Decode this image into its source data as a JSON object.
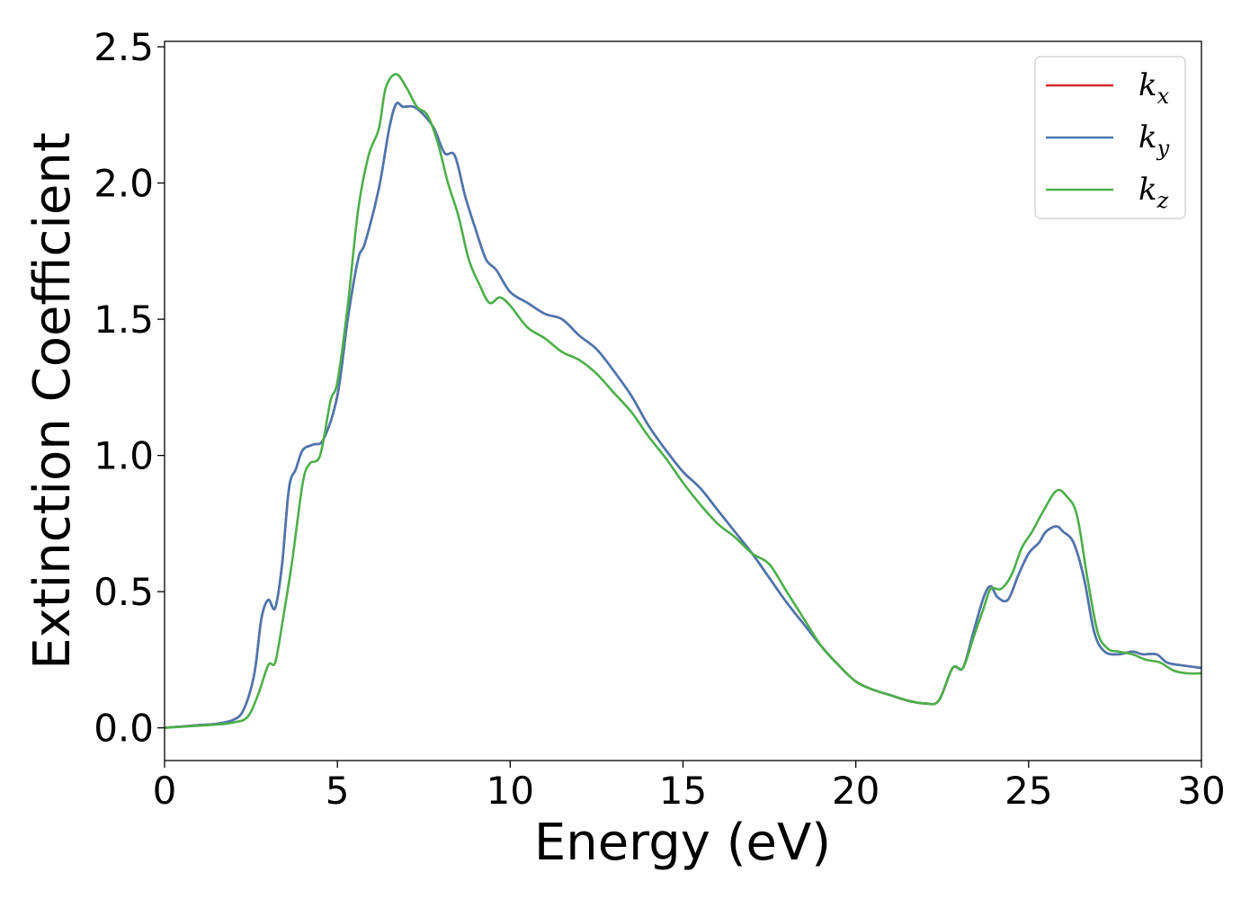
{
  "chart_data": {
    "type": "line",
    "xlabel": "Energy (eV)",
    "ylabel": "Extinction Coefficient",
    "xlim": [
      0,
      30
    ],
    "ylim": [
      -0.12,
      2.52
    ],
    "xticks": [
      0,
      5,
      10,
      15,
      20,
      25,
      30
    ],
    "xtick_labels": [
      "0",
      "5",
      "10",
      "15",
      "20",
      "25",
      "30"
    ],
    "yticks": [
      0.0,
      0.5,
      1.0,
      1.5,
      2.0,
      2.5
    ],
    "ytick_labels": [
      "0.0",
      "0.5",
      "1.0",
      "1.5",
      "2.0",
      "2.5"
    ],
    "grid": false,
    "legend_position": "top-right",
    "series": [
      {
        "name": "k",
        "sub": "x",
        "color": "#d62728",
        "points": [
          [
            0,
            0
          ],
          [
            1,
            0.01
          ],
          [
            1.5,
            0.015
          ],
          [
            2,
            0.03
          ],
          [
            2.3,
            0.07
          ],
          [
            2.6,
            0.2
          ],
          [
            2.8,
            0.4
          ],
          [
            3.0,
            0.47
          ],
          [
            3.2,
            0.44
          ],
          [
            3.4,
            0.6
          ],
          [
            3.6,
            0.88
          ],
          [
            3.8,
            0.95
          ],
          [
            4.0,
            1.02
          ],
          [
            4.3,
            1.04
          ],
          [
            4.6,
            1.06
          ],
          [
            5.0,
            1.22
          ],
          [
            5.3,
            1.5
          ],
          [
            5.6,
            1.72
          ],
          [
            5.8,
            1.78
          ],
          [
            6.2,
            1.98
          ],
          [
            6.5,
            2.2
          ],
          [
            6.7,
            2.29
          ],
          [
            6.9,
            2.28
          ],
          [
            7.2,
            2.28
          ],
          [
            7.5,
            2.25
          ],
          [
            7.8,
            2.2
          ],
          [
            8.1,
            2.11
          ],
          [
            8.4,
            2.1
          ],
          [
            8.7,
            1.95
          ],
          [
            9.0,
            1.83
          ],
          [
            9.3,
            1.72
          ],
          [
            9.6,
            1.68
          ],
          [
            10.0,
            1.6
          ],
          [
            10.5,
            1.56
          ],
          [
            11.0,
            1.52
          ],
          [
            11.5,
            1.5
          ],
          [
            12.0,
            1.44
          ],
          [
            12.5,
            1.39
          ],
          [
            13.0,
            1.31
          ],
          [
            13.5,
            1.22
          ],
          [
            14.0,
            1.11
          ],
          [
            14.5,
            1.02
          ],
          [
            15.0,
            0.94
          ],
          [
            15.5,
            0.88
          ],
          [
            16.0,
            0.8
          ],
          [
            16.5,
            0.72
          ],
          [
            17.0,
            0.64
          ],
          [
            17.5,
            0.55
          ],
          [
            18.0,
            0.46
          ],
          [
            18.5,
            0.38
          ],
          [
            19.0,
            0.3
          ],
          [
            19.5,
            0.23
          ],
          [
            20.0,
            0.17
          ],
          [
            20.5,
            0.14
          ],
          [
            21.0,
            0.12
          ],
          [
            21.5,
            0.1
          ],
          [
            22.0,
            0.09
          ],
          [
            22.4,
            0.1
          ],
          [
            22.8,
            0.22
          ],
          [
            23.1,
            0.22
          ],
          [
            23.4,
            0.35
          ],
          [
            23.7,
            0.48
          ],
          [
            23.9,
            0.52
          ],
          [
            24.1,
            0.48
          ],
          [
            24.4,
            0.47
          ],
          [
            24.7,
            0.56
          ],
          [
            25.0,
            0.64
          ],
          [
            25.3,
            0.68
          ],
          [
            25.5,
            0.72
          ],
          [
            25.8,
            0.74
          ],
          [
            26.0,
            0.72
          ],
          [
            26.3,
            0.68
          ],
          [
            26.6,
            0.55
          ],
          [
            26.9,
            0.35
          ],
          [
            27.2,
            0.28
          ],
          [
            27.6,
            0.27
          ],
          [
            28.0,
            0.28
          ],
          [
            28.3,
            0.27
          ],
          [
            28.7,
            0.27
          ],
          [
            29.0,
            0.24
          ],
          [
            29.4,
            0.23
          ],
          [
            30.0,
            0.22
          ]
        ]
      },
      {
        "name": "k",
        "sub": "y",
        "color": "#4a77b0",
        "points": [
          [
            0,
            0
          ],
          [
            1,
            0.01
          ],
          [
            1.5,
            0.015
          ],
          [
            2,
            0.03
          ],
          [
            2.3,
            0.07
          ],
          [
            2.6,
            0.2
          ],
          [
            2.8,
            0.4
          ],
          [
            3.0,
            0.47
          ],
          [
            3.2,
            0.44
          ],
          [
            3.4,
            0.6
          ],
          [
            3.6,
            0.88
          ],
          [
            3.8,
            0.95
          ],
          [
            4.0,
            1.02
          ],
          [
            4.3,
            1.04
          ],
          [
            4.6,
            1.06
          ],
          [
            5.0,
            1.22
          ],
          [
            5.3,
            1.5
          ],
          [
            5.6,
            1.72
          ],
          [
            5.8,
            1.78
          ],
          [
            6.2,
            1.98
          ],
          [
            6.5,
            2.2
          ],
          [
            6.7,
            2.29
          ],
          [
            6.9,
            2.28
          ],
          [
            7.2,
            2.28
          ],
          [
            7.5,
            2.25
          ],
          [
            7.8,
            2.2
          ],
          [
            8.1,
            2.11
          ],
          [
            8.4,
            2.1
          ],
          [
            8.7,
            1.95
          ],
          [
            9.0,
            1.83
          ],
          [
            9.3,
            1.72
          ],
          [
            9.6,
            1.68
          ],
          [
            10.0,
            1.6
          ],
          [
            10.5,
            1.56
          ],
          [
            11.0,
            1.52
          ],
          [
            11.5,
            1.5
          ],
          [
            12.0,
            1.44
          ],
          [
            12.5,
            1.39
          ],
          [
            13.0,
            1.31
          ],
          [
            13.5,
            1.22
          ],
          [
            14.0,
            1.11
          ],
          [
            14.5,
            1.02
          ],
          [
            15.0,
            0.94
          ],
          [
            15.5,
            0.88
          ],
          [
            16.0,
            0.8
          ],
          [
            16.5,
            0.72
          ],
          [
            17.0,
            0.64
          ],
          [
            17.5,
            0.55
          ],
          [
            18.0,
            0.46
          ],
          [
            18.5,
            0.38
          ],
          [
            19.0,
            0.3
          ],
          [
            19.5,
            0.23
          ],
          [
            20.0,
            0.17
          ],
          [
            20.5,
            0.14
          ],
          [
            21.0,
            0.12
          ],
          [
            21.5,
            0.1
          ],
          [
            22.0,
            0.09
          ],
          [
            22.4,
            0.1
          ],
          [
            22.8,
            0.22
          ],
          [
            23.1,
            0.22
          ],
          [
            23.4,
            0.35
          ],
          [
            23.7,
            0.48
          ],
          [
            23.9,
            0.52
          ],
          [
            24.1,
            0.48
          ],
          [
            24.4,
            0.47
          ],
          [
            24.7,
            0.56
          ],
          [
            25.0,
            0.64
          ],
          [
            25.3,
            0.68
          ],
          [
            25.5,
            0.72
          ],
          [
            25.8,
            0.74
          ],
          [
            26.0,
            0.72
          ],
          [
            26.3,
            0.68
          ],
          [
            26.6,
            0.55
          ],
          [
            26.9,
            0.35
          ],
          [
            27.2,
            0.28
          ],
          [
            27.6,
            0.27
          ],
          [
            28.0,
            0.28
          ],
          [
            28.3,
            0.27
          ],
          [
            28.7,
            0.27
          ],
          [
            29.0,
            0.24
          ],
          [
            29.4,
            0.23
          ],
          [
            30.0,
            0.22
          ]
        ]
      },
      {
        "name": "k",
        "sub": "z",
        "color": "#4daf4a",
        "points": [
          [
            0,
            0
          ],
          [
            1,
            0.008
          ],
          [
            1.5,
            0.012
          ],
          [
            2,
            0.02
          ],
          [
            2.4,
            0.04
          ],
          [
            2.7,
            0.12
          ],
          [
            3.0,
            0.23
          ],
          [
            3.2,
            0.24
          ],
          [
            3.4,
            0.38
          ],
          [
            3.7,
            0.62
          ],
          [
            4.0,
            0.9
          ],
          [
            4.2,
            0.97
          ],
          [
            4.5,
            1.0
          ],
          [
            4.8,
            1.2
          ],
          [
            5.0,
            1.27
          ],
          [
            5.3,
            1.55
          ],
          [
            5.6,
            1.9
          ],
          [
            5.9,
            2.1
          ],
          [
            6.2,
            2.2
          ],
          [
            6.4,
            2.35
          ],
          [
            6.7,
            2.4
          ],
          [
            7.0,
            2.35
          ],
          [
            7.3,
            2.28
          ],
          [
            7.6,
            2.25
          ],
          [
            7.9,
            2.15
          ],
          [
            8.2,
            2.0
          ],
          [
            8.5,
            1.88
          ],
          [
            8.8,
            1.72
          ],
          [
            9.1,
            1.63
          ],
          [
            9.4,
            1.56
          ],
          [
            9.7,
            1.58
          ],
          [
            10.0,
            1.55
          ],
          [
            10.5,
            1.47
          ],
          [
            11.0,
            1.43
          ],
          [
            11.5,
            1.38
          ],
          [
            12.0,
            1.35
          ],
          [
            12.5,
            1.3
          ],
          [
            13.0,
            1.23
          ],
          [
            13.5,
            1.16
          ],
          [
            14.0,
            1.07
          ],
          [
            14.5,
            0.99
          ],
          [
            15.0,
            0.9
          ],
          [
            15.5,
            0.82
          ],
          [
            16.0,
            0.75
          ],
          [
            16.5,
            0.7
          ],
          [
            17.0,
            0.64
          ],
          [
            17.5,
            0.6
          ],
          [
            18.0,
            0.5
          ],
          [
            18.5,
            0.4
          ],
          [
            19.0,
            0.3
          ],
          [
            19.5,
            0.23
          ],
          [
            20.0,
            0.17
          ],
          [
            20.5,
            0.14
          ],
          [
            21.0,
            0.12
          ],
          [
            21.5,
            0.1
          ],
          [
            22.0,
            0.09
          ],
          [
            22.4,
            0.1
          ],
          [
            22.8,
            0.22
          ],
          [
            23.1,
            0.22
          ],
          [
            23.4,
            0.33
          ],
          [
            23.7,
            0.44
          ],
          [
            23.9,
            0.51
          ],
          [
            24.2,
            0.51
          ],
          [
            24.5,
            0.56
          ],
          [
            24.8,
            0.66
          ],
          [
            25.1,
            0.72
          ],
          [
            25.4,
            0.79
          ],
          [
            25.8,
            0.87
          ],
          [
            26.1,
            0.85
          ],
          [
            26.4,
            0.78
          ],
          [
            26.7,
            0.55
          ],
          [
            27.0,
            0.35
          ],
          [
            27.3,
            0.29
          ],
          [
            27.6,
            0.28
          ],
          [
            28.0,
            0.27
          ],
          [
            28.4,
            0.25
          ],
          [
            28.8,
            0.24
          ],
          [
            29.2,
            0.21
          ],
          [
            29.6,
            0.2
          ],
          [
            30.0,
            0.2
          ]
        ]
      }
    ]
  }
}
